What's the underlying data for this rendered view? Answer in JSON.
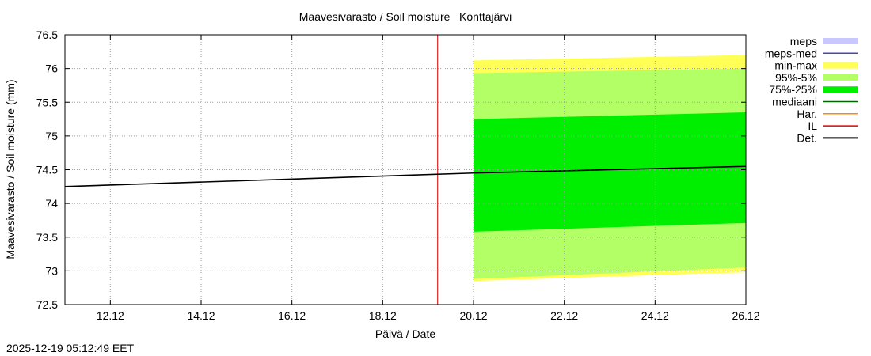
{
  "chart_data": {
    "type": "area",
    "title": "Maavesivarasto / Soil moisture   Konttajärvi",
    "xlabel": "Päivä / Date",
    "ylabel": "Maavesivarasto / Soil moisture (mm)",
    "xlim_days": [
      11.0,
      26.0
    ],
    "ylim": [
      72.5,
      76.5
    ],
    "grid": true,
    "y_ticks": [
      72.5,
      73,
      73.5,
      74,
      74.5,
      75,
      75.5,
      76,
      76.5
    ],
    "y_tick_labels": [
      "72.5",
      "73",
      "73.5",
      "74",
      "74.5",
      "75",
      "75.5",
      "76",
      "76.5"
    ],
    "x_ticks_days": [
      12,
      14,
      16,
      18,
      20,
      22,
      24,
      26
    ],
    "x_tick_labels": [
      "12.12",
      "14.12",
      "16.12",
      "18.12",
      "20.12",
      "22.12",
      "24.12",
      "26.12"
    ],
    "forecast_start_day": 20.0,
    "issue_time_day": 19.21,
    "observed_series": {
      "name": "Det.",
      "x_days": [
        11.0,
        20.0
      ],
      "values": [
        74.25,
        74.45
      ]
    },
    "forecast_series": {
      "name": "Det.",
      "x_days": [
        20.0,
        26.0
      ],
      "values": [
        74.45,
        74.55
      ]
    },
    "bands": [
      {
        "name": "min-max",
        "color": "#ffff55",
        "x_days": [
          20.0,
          26.0
        ],
        "lower": [
          72.85,
          72.98
        ],
        "upper": [
          76.12,
          76.2
        ]
      },
      {
        "name": "95%-5%",
        "color": "#b3ff66",
        "x_days": [
          20.0,
          26.0
        ],
        "lower": [
          72.88,
          73.05
        ],
        "upper": [
          75.93,
          76.0
        ]
      },
      {
        "name": "75%-25%",
        "color": "#00ee00",
        "x_days": [
          20.0,
          26.0
        ],
        "lower": [
          73.58,
          73.71
        ],
        "upper": [
          75.25,
          75.35
        ]
      }
    ],
    "legend": {
      "placement": "right",
      "items": [
        {
          "name": "meps",
          "color": "#c8c8ff",
          "style": "box"
        },
        {
          "name": "meps-med",
          "color": "#4444bb",
          "style": "line"
        },
        {
          "name": "min-max",
          "color": "#ffff55",
          "style": "box"
        },
        {
          "name": "95%-5%",
          "color": "#b3ff66",
          "style": "box"
        },
        {
          "name": "75%-25%",
          "color": "#00ee00",
          "style": "box"
        },
        {
          "name": "mediaani",
          "color": "#006400",
          "style": "line"
        },
        {
          "name": "Har.",
          "color": "#ff8800",
          "style": "line"
        },
        {
          "name": "IL",
          "color": "#dd0000",
          "style": "line"
        },
        {
          "name": "Det.",
          "color": "#000000",
          "style": "line"
        }
      ]
    }
  },
  "footer": {
    "timestamp": "2025-12-19 05:12:49 EET"
  }
}
